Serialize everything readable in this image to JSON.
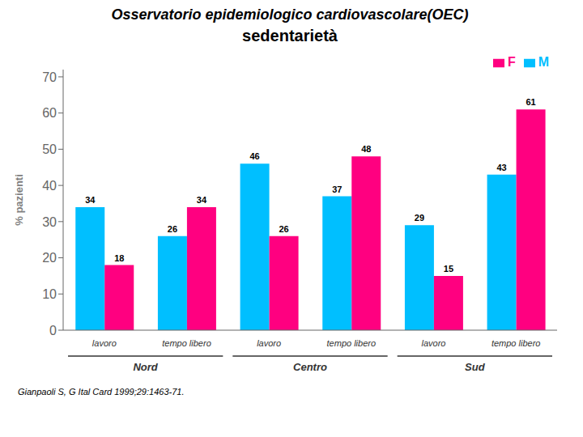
{
  "chart_data": {
    "type": "bar",
    "title": "Osservatorio epidemiologico cardiovascolare(OEC)",
    "subtitle": "sedentarietà",
    "ylabel": "% pazienti",
    "footer": "Gianpaoli S, G Ital Card 1999;29:1463-71.",
    "categories": [
      "lavoro",
      "tempo libero",
      "lavoro",
      "tempo libero",
      "lavoro",
      "tempo libero"
    ],
    "groups": [
      "Nord",
      "Centro",
      "Sud"
    ],
    "series": [
      {
        "name": "M",
        "color": "#00BFFF",
        "values": [
          34,
          26,
          46,
          37,
          29,
          43
        ]
      },
      {
        "name": "F",
        "color": "#FF0080",
        "values": [
          18,
          34,
          26,
          48,
          15,
          61
        ]
      }
    ],
    "ylim": [
      0,
      72
    ],
    "yticks": [
      0,
      10,
      20,
      30,
      40,
      50,
      60,
      70
    ],
    "grid": false,
    "legend": "upper right",
    "data_labels": true
  }
}
